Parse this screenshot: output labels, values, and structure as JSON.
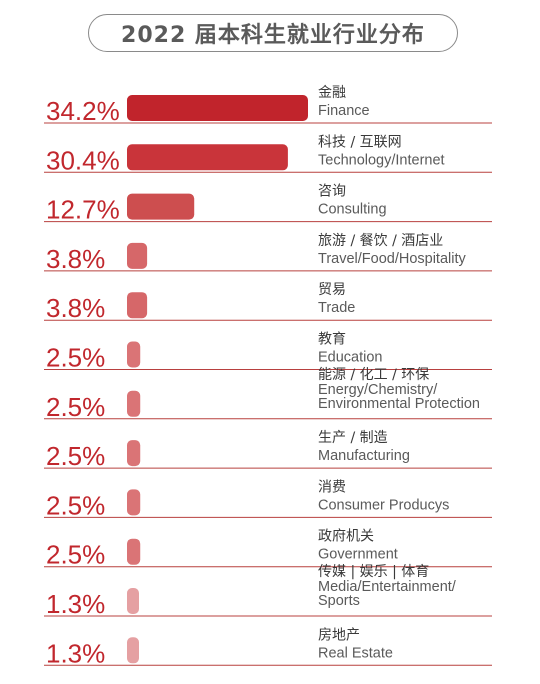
{
  "title": "2022 届本科生就业行业分布",
  "colors": {
    "accent": "#c1272d",
    "text_dark": "#3a3a3a",
    "text_gray": "#5a5a5a",
    "pill_border": "#8a8a8a",
    "underline": "#b8403f"
  },
  "chart_data": {
    "type": "bar",
    "orientation": "horizontal",
    "value_unit": "%",
    "xlim": [
      0,
      34.2
    ],
    "categories": [
      {
        "zh": "金融",
        "en": [
          "Finance"
        ],
        "value": 34.2,
        "label": "34.2%",
        "color": "#c1242c"
      },
      {
        "zh": "科技 / 互联网",
        "en": [
          "Technology/Internet"
        ],
        "value": 30.4,
        "label": "30.4%",
        "color": "#c9343a"
      },
      {
        "zh": "咨询",
        "en": [
          "Consulting"
        ],
        "value": 12.7,
        "label": "12.7%",
        "color": "#cd4e4f"
      },
      {
        "zh": "旅游 / 餐饮 / 酒店业",
        "en": [
          "Travel/Food/Hospitality"
        ],
        "value": 3.8,
        "label": "3.8%",
        "color": "#d66769"
      },
      {
        "zh": "贸易",
        "en": [
          "Trade"
        ],
        "value": 3.8,
        "label": "3.8%",
        "color": "#d66769"
      },
      {
        "zh": "教育",
        "en": [
          "Education"
        ],
        "value": 2.5,
        "label": "2.5%",
        "color": "#da7476"
      },
      {
        "zh": "能源 / 化工 / 环保",
        "en": [
          "Energy/Chemistry/",
          "Environmental Protection"
        ],
        "value": 2.5,
        "label": "2.5%",
        "color": "#da7476"
      },
      {
        "zh": "生产 / 制造",
        "en": [
          "Manufacturing"
        ],
        "value": 2.5,
        "label": "2.5%",
        "color": "#da7476"
      },
      {
        "zh": "消费",
        "en": [
          "Consumer Producys"
        ],
        "value": 2.5,
        "label": "2.5%",
        "color": "#da7476"
      },
      {
        "zh": "政府机关",
        "en": [
          "Government"
        ],
        "value": 2.5,
        "label": "2.5%",
        "color": "#da7476"
      },
      {
        "zh": "传媒 | 娱乐 | 体育",
        "en": [
          "Media/Entertainment/",
          "Sports"
        ],
        "value": 1.3,
        "label": "1.3%",
        "color": "#e5a0a2"
      },
      {
        "zh": "房地产",
        "en": [
          "Real Estate"
        ],
        "value": 1.3,
        "label": "1.3%",
        "color": "#e5a0a2"
      }
    ]
  }
}
